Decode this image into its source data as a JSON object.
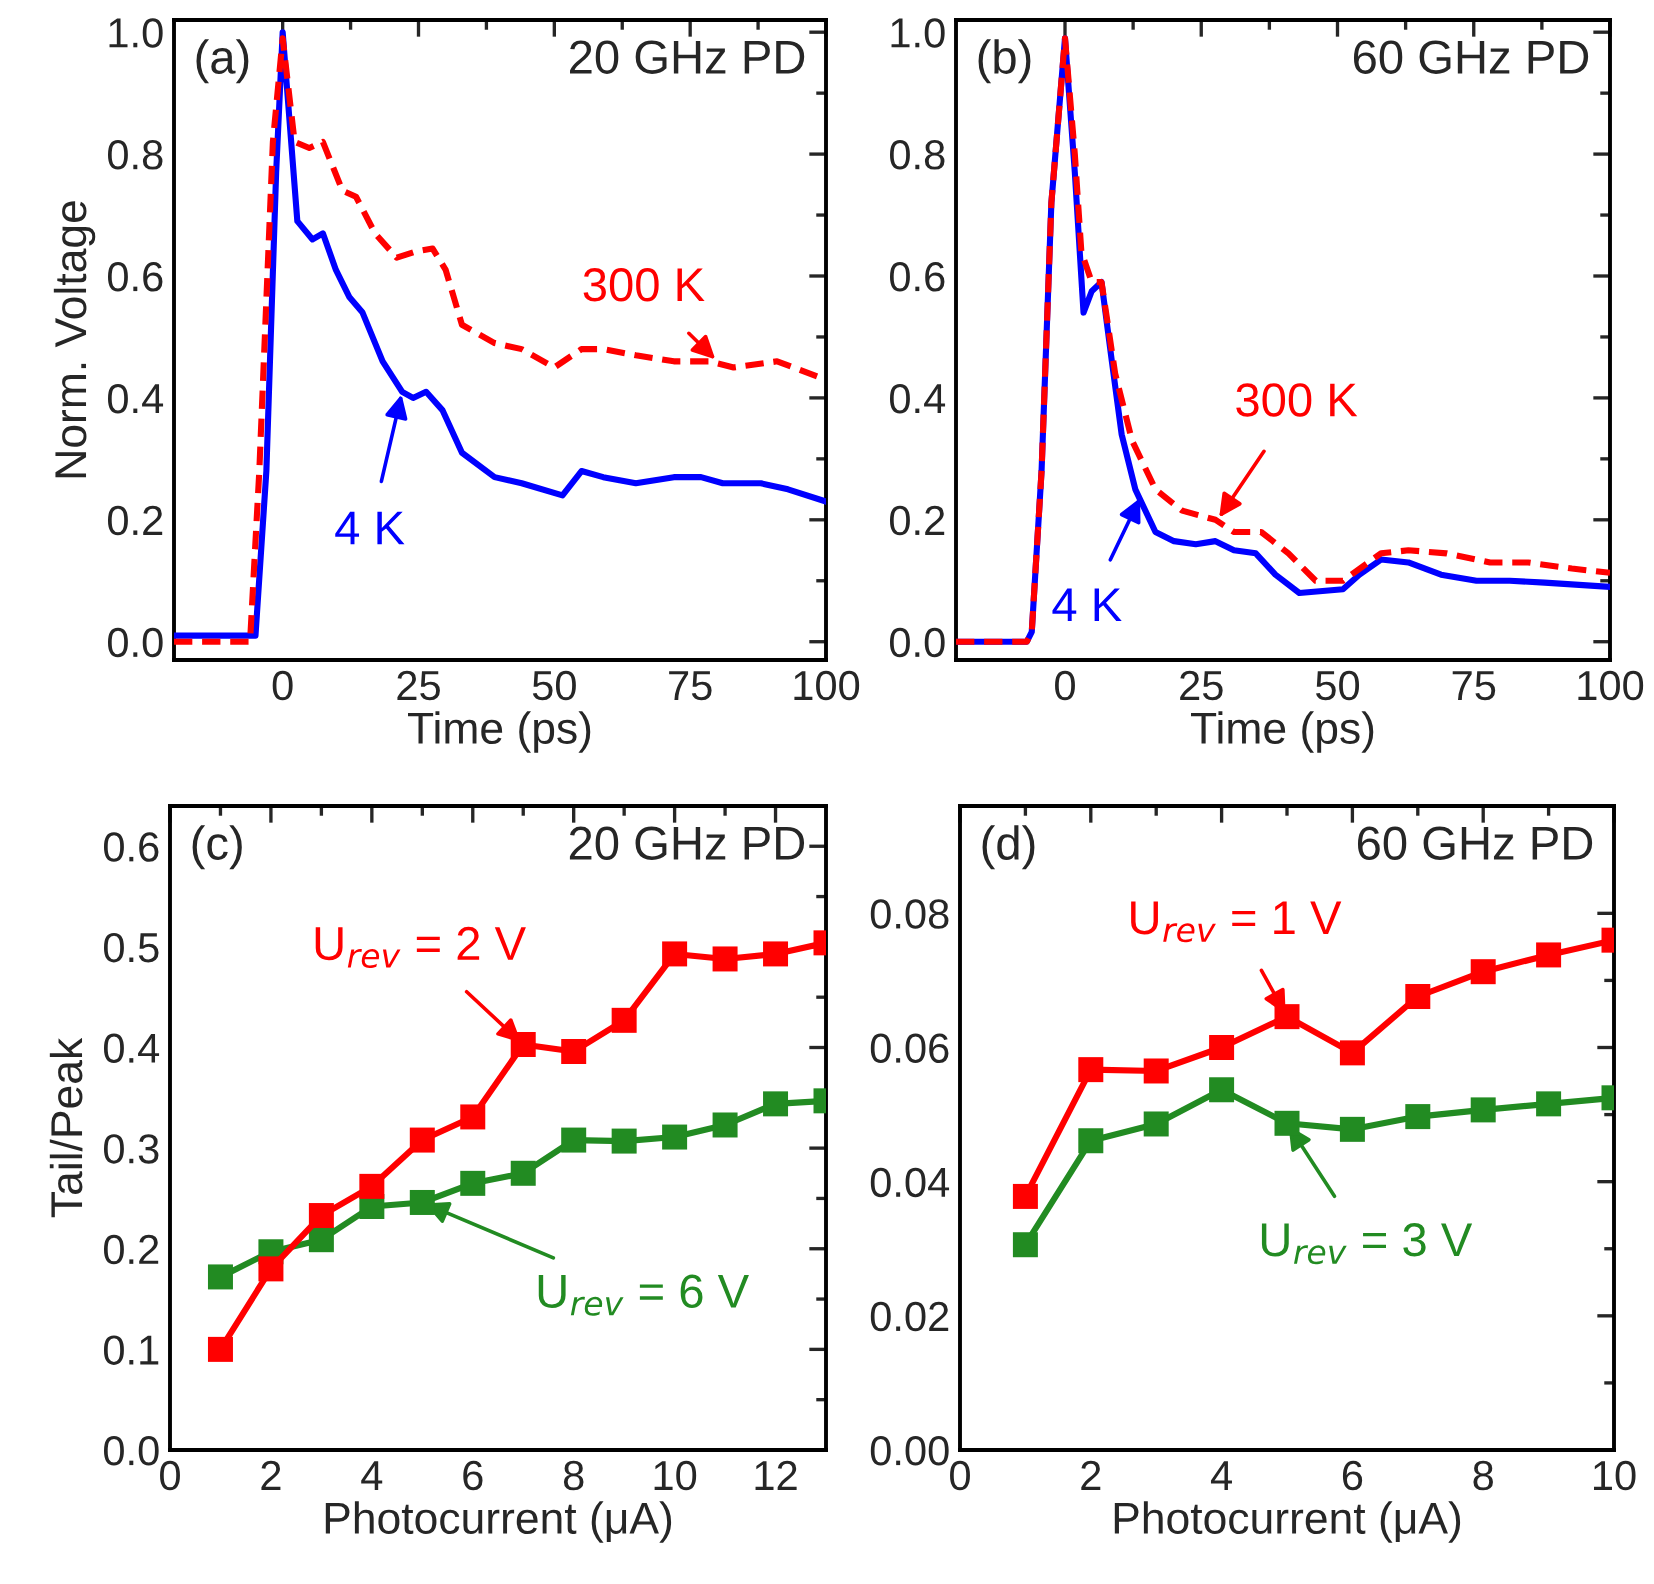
{
  "chart_data": [
    {
      "type": "line",
      "xlabel": "Time (ps)",
      "ylabel": "Norm. Voltage",
      "xlim": [
        -20,
        100
      ],
      "xticks": [
        0,
        25,
        50,
        75,
        100
      ],
      "ylim": [
        -0.03,
        1.02
      ],
      "yticks": [
        {
          "value": 0,
          "label": "0.0"
        },
        {
          "value": 0.2,
          "label": "0.2"
        },
        {
          "value": 0.4,
          "label": "0.4"
        },
        {
          "value": 0.6,
          "label": "0.6"
        },
        {
          "value": 0.8,
          "label": "0.8"
        },
        {
          "value": 1.0,
          "label": "1.0"
        }
      ],
      "grid": false,
      "marker": "none",
      "series": [
        {
          "color": "#ff0000",
          "line_style": "dashed",
          "x": [
            -20,
            -6,
            -4.3,
            -1.8,
            0,
            2.2,
            4.9,
            7.4,
            11,
            13.5,
            17,
            21,
            24.5,
            27.6,
            30,
            33,
            39,
            44,
            50,
            55,
            59,
            65,
            72,
            78.5,
            83,
            91,
            100
          ],
          "values": [
            0.0,
            0.0,
            0.28,
            0.82,
            0.99,
            0.82,
            0.81,
            0.82,
            0.74,
            0.73,
            0.67,
            0.63,
            0.64,
            0.645,
            0.61,
            0.52,
            0.49,
            0.48,
            0.45,
            0.48,
            0.48,
            0.47,
            0.46,
            0.46,
            0.45,
            0.46,
            0.43
          ]
        },
        {
          "color": "#0000ff",
          "line_style": "solid",
          "x": [
            -20,
            -5,
            -3,
            -1.2,
            0,
            2.7,
            5.5,
            7.4,
            9.8,
            12.3,
            14.7,
            18.4,
            22,
            24,
            26.4,
            29.4,
            33,
            39,
            44,
            51.5,
            55,
            59,
            65,
            72,
            77,
            81,
            88,
            93,
            100
          ],
          "values": [
            0.01,
            0.01,
            0.28,
            0.77,
            1.0,
            0.69,
            0.66,
            0.67,
            0.61,
            0.565,
            0.54,
            0.46,
            0.41,
            0.4,
            0.41,
            0.38,
            0.31,
            0.27,
            0.26,
            0.24,
            0.28,
            0.27,
            0.26,
            0.27,
            0.27,
            0.26,
            0.26,
            0.25,
            0.23
          ]
        }
      ],
      "annotations": [
        "(a)",
        "20 GHz PD",
        {
          "text": "300 K",
          "x": 80,
          "y": 0.46
        },
        {
          "text": "4 K",
          "x": 22,
          "y": 0.41
        }
      ]
    },
    {
      "type": "line",
      "xlabel": "Time (ps)",
      "xlim": [
        -20,
        100
      ],
      "xticks": [
        0,
        25,
        50,
        75,
        100
      ],
      "ylim": [
        -0.03,
        1.02
      ],
      "yticks": [
        {
          "value": 0,
          "label": "0.0"
        },
        {
          "value": 0.2,
          "label": "0.2"
        },
        {
          "value": 0.4,
          "label": "0.4"
        },
        {
          "value": 0.6,
          "label": "0.6"
        },
        {
          "value": 0.8,
          "label": "0.8"
        },
        {
          "value": 1.0,
          "label": "1.0"
        }
      ],
      "grid": false,
      "marker": "none",
      "series": [
        {
          "color": "#ff0000",
          "line_style": "dashed",
          "x": [
            -20,
            -7,
            -6.1,
            -4.3,
            -2.5,
            0,
            1.8,
            3,
            4.9,
            6.7,
            9.2,
            12.3,
            16.6,
            21.5,
            27.6,
            31,
            36,
            41,
            46,
            51,
            58,
            63,
            70,
            78,
            85,
            93,
            100
          ],
          "values": [
            0.0,
            0.0,
            0.016,
            0.28,
            0.72,
            0.99,
            0.8,
            0.64,
            0.59,
            0.59,
            0.44,
            0.33,
            0.25,
            0.215,
            0.2,
            0.18,
            0.18,
            0.145,
            0.1,
            0.1,
            0.145,
            0.15,
            0.145,
            0.13,
            0.13,
            0.12,
            0.113
          ]
        },
        {
          "color": "#0000ff",
          "line_style": "solid",
          "x": [
            -20,
            -7,
            -6.1,
            -4.3,
            -2.5,
            0,
            1.8,
            3.4,
            4.9,
            6.7,
            8.6,
            10.4,
            12.9,
            16.6,
            20,
            24,
            27.6,
            31,
            35,
            38.6,
            43,
            51,
            54,
            58,
            63,
            69,
            75.5,
            81.6,
            88,
            100
          ],
          "values": [
            0.0,
            0.0,
            0.016,
            0.28,
            0.72,
            0.99,
            0.77,
            0.54,
            0.575,
            0.59,
            0.46,
            0.34,
            0.25,
            0.18,
            0.165,
            0.16,
            0.165,
            0.15,
            0.145,
            0.11,
            0.08,
            0.086,
            0.11,
            0.135,
            0.13,
            0.11,
            0.1,
            0.1,
            0.097,
            0.09
          ]
        }
      ],
      "annotations": [
        "(b)",
        "60 GHz PD",
        {
          "text": "300 K",
          "x": 28,
          "y": 0.2
        },
        {
          "text": "4 K",
          "x": 14,
          "y": 0.24
        }
      ]
    },
    {
      "type": "line",
      "xlabel": "Photocurrent (μA)",
      "ylabel": "Tail/Peak",
      "xlim": [
        0,
        13
      ],
      "xticks": [
        0,
        2,
        4,
        6,
        8,
        10,
        12
      ],
      "ylim": [
        0,
        0.64
      ],
      "yticks": [
        {
          "value": 0,
          "label": "0.0"
        },
        {
          "value": 0.1,
          "label": "0.1"
        },
        {
          "value": 0.2,
          "label": "0.2"
        },
        {
          "value": 0.3,
          "label": "0.3"
        },
        {
          "value": 0.4,
          "label": "0.4"
        },
        {
          "value": 0.5,
          "label": "0.5"
        },
        {
          "value": 0.6,
          "label": "0.6"
        }
      ],
      "grid": false,
      "marker": "square",
      "line_style": "solid",
      "x": [
        1,
        2,
        3,
        4,
        5,
        6,
        7,
        8,
        9,
        10,
        11,
        12,
        13
      ],
      "series": [
        {
          "color": "#ff0000",
          "values": [
            0.1,
            0.18,
            0.233,
            0.262,
            0.308,
            0.331,
            0.403,
            0.396,
            0.427,
            0.493,
            0.488,
            0.493,
            0.504
          ]
        },
        {
          "color": "#228b22",
          "values": [
            0.172,
            0.197,
            0.209,
            0.242,
            0.246,
            0.265,
            0.275,
            0.308,
            0.307,
            0.311,
            0.323,
            0.344,
            0.347
          ]
        }
      ],
      "annotations": [
        "(c)",
        "20 GHz PD",
        {
          "text": "U$_{rev}$ = 2 V",
          "x": 7,
          "y": 0.403
        },
        {
          "text": "U$_{rev}$ = 6 V",
          "x": 5,
          "y": 0.246
        }
      ]
    },
    {
      "type": "line",
      "xlabel": "Photocurrent (μA)",
      "xlim": [
        0,
        10
      ],
      "xticks": [
        0,
        2,
        4,
        6,
        8,
        10
      ],
      "ylim": [
        0,
        0.096
      ],
      "yticks": [
        {
          "value": 0,
          "label": "0.00"
        },
        {
          "value": 0.02,
          "label": "0.02"
        },
        {
          "value": 0.04,
          "label": "0.04"
        },
        {
          "value": 0.06,
          "label": "0.06"
        },
        {
          "value": 0.08,
          "label": "0.08"
        }
      ],
      "grid": false,
      "marker": "square",
      "line_style": "solid",
      "x": [
        1,
        2,
        3,
        4,
        5,
        6,
        7,
        8,
        9,
        10
      ],
      "series": [
        {
          "color": "#ff0000",
          "values": [
            0.0378,
            0.0567,
            0.0565,
            0.06,
            0.0646,
            0.0592,
            0.0676,
            0.0713,
            0.0738,
            0.076
          ]
        },
        {
          "color": "#228b22",
          "values": [
            0.0306,
            0.0461,
            0.0486,
            0.0537,
            0.0487,
            0.0478,
            0.0497,
            0.0507,
            0.0516,
            0.0525
          ]
        }
      ],
      "annotations": [
        "(d)",
        "60 GHz PD",
        {
          "text": "U$_{rev}$ = 1 V",
          "x": 5,
          "y": 0.0646
        },
        {
          "text": "U$_{rev}$ = 3 V",
          "x": 5,
          "y": 0.0487
        }
      ]
    }
  ]
}
